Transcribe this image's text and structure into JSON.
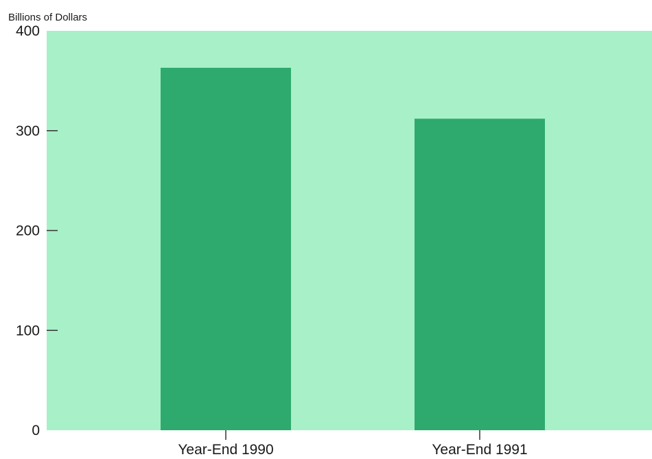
{
  "chart_data": {
    "type": "bar",
    "ylabel": "Billions of Dollars",
    "categories": [
      "Year-End 1990",
      "Year-End 1991"
    ],
    "values": [
      363,
      312
    ],
    "ylim": [
      0,
      400
    ],
    "yticks": [
      0,
      100,
      200,
      300,
      400
    ],
    "grid": false
  },
  "colors": {
    "plot_background": "#a8f0c8",
    "bar": "#2eaa6e",
    "text": "#1a1a1a",
    "axis": "#333333"
  }
}
